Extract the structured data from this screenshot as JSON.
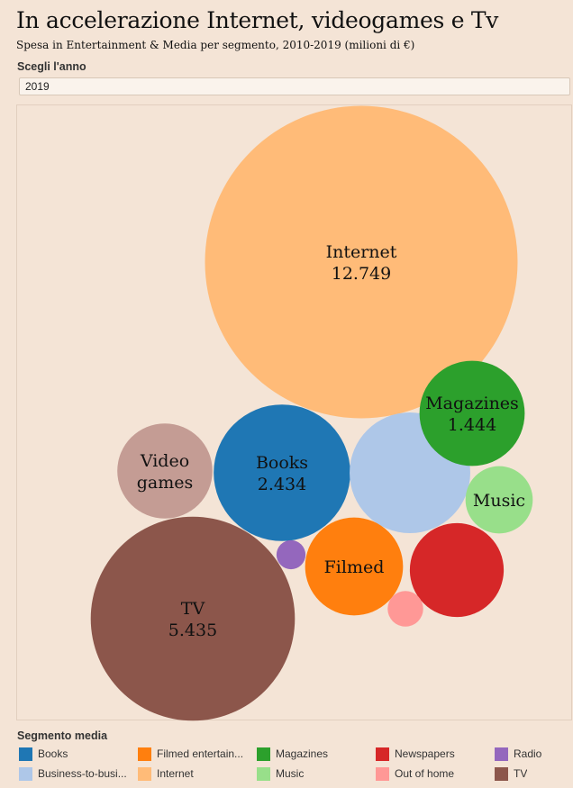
{
  "header": {
    "title": "In accelerazione Internet, videogames e Tv",
    "subtitle": "Spesa in Entertainment & Media per segmento, 2010-2019 (milioni di €)"
  },
  "controls": {
    "year_label": "Scegli l'anno",
    "year_value": "2019"
  },
  "legend": {
    "title": "Segmento media",
    "items": [
      {
        "label": "Books",
        "color": "#1f77b4"
      },
      {
        "label": "Filmed entertain...",
        "color": "#ff7f0e"
      },
      {
        "label": "Magazines",
        "color": "#2ca02c"
      },
      {
        "label": "Newspapers",
        "color": "#d62728"
      },
      {
        "label": "Radio",
        "color": "#9467bd"
      },
      {
        "label": "Business-to-busi...",
        "color": "#aec7e8"
      },
      {
        "label": "Internet",
        "color": "#ffbb78"
      },
      {
        "label": "Music",
        "color": "#98df8a"
      },
      {
        "label": "Out of home",
        "color": "#ff9896"
      },
      {
        "label": "TV",
        "color": "#8c564b"
      }
    ]
  },
  "chart_data": {
    "type": "bubble",
    "year": "2019",
    "bubbles": [
      {
        "segment": "Internet",
        "label": [
          "Internet",
          "12.749"
        ],
        "value": 12749,
        "color": "#ffbb78"
      },
      {
        "segment": "TV",
        "label": [
          "TV",
          "5.435"
        ],
        "value": 5435,
        "color": "#8c564b"
      },
      {
        "segment": "Books",
        "label": [
          "Books",
          "2.434"
        ],
        "value": 2434,
        "color": "#1f77b4"
      },
      {
        "segment": "Business-to-business",
        "label": [],
        "value": 1900,
        "color": "#aec7e8"
      },
      {
        "segment": "Magazines",
        "label": [
          "Magazines",
          "1.444"
        ],
        "value": 1444,
        "color": "#2ca02c"
      },
      {
        "segment": "Newspapers",
        "label": [],
        "value": 1150,
        "color": "#d62728"
      },
      {
        "segment": "Filmed entertainment",
        "label": [
          "Filmed"
        ],
        "value": 1250,
        "color": "#ff7f0e"
      },
      {
        "segment": "Video games",
        "label": [
          "Video",
          "games"
        ],
        "value": 1180,
        "color": "#c49c94"
      },
      {
        "segment": "Music",
        "label": [
          "Music"
        ],
        "value": 590,
        "color": "#98df8a"
      },
      {
        "segment": "Out of home",
        "label": [],
        "value": 165,
        "color": "#ff9896"
      },
      {
        "segment": "Radio",
        "label": [],
        "value": 110,
        "color": "#9467bd"
      }
    ]
  }
}
